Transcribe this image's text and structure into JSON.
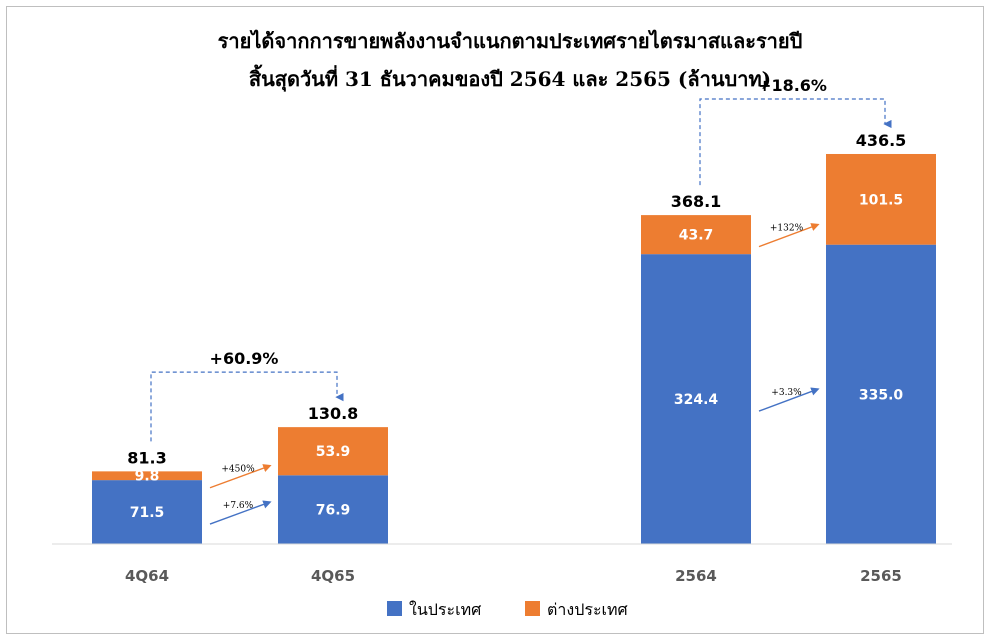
{
  "chart_data": {
    "type": "bar",
    "stacked": true,
    "title": "รายได้จากการขายพลังงานจำแนกตามประเทศรายไตรมาสและรายปี",
    "subtitle": "สิ้นสุดวันที่ 31 ธันวาคมของปี 2564 และ 2565 (ล้านบาท)",
    "categories": [
      "4Q64",
      "4Q65",
      "2564",
      "2565"
    ],
    "series": [
      {
        "name": "ในประเทศ",
        "color": "#4472C4",
        "values": [
          71.5,
          76.9,
          324.4,
          335.0
        ],
        "labels": [
          "71.5",
          "76.9",
          "324.4",
          "335.0"
        ]
      },
      {
        "name": "ต่างประเทศ",
        "color": "#ED7D31",
        "values": [
          9.8,
          53.9,
          43.7,
          101.5
        ],
        "labels": [
          "9.8",
          "53.9",
          "43.7",
          "101.5"
        ]
      }
    ],
    "totals": [
      "81.3",
      "130.8",
      "368.1",
      "436.5"
    ],
    "growth": {
      "total": [
        "+60.9%",
        "+18.6%"
      ],
      "domestic": [
        "+7.6%",
        "+3.3%"
      ],
      "foreign": [
        "+450%",
        "+132%"
      ]
    },
    "legend_position": "bottom-center",
    "grid": false,
    "ylim": [
      0,
      480
    ]
  }
}
